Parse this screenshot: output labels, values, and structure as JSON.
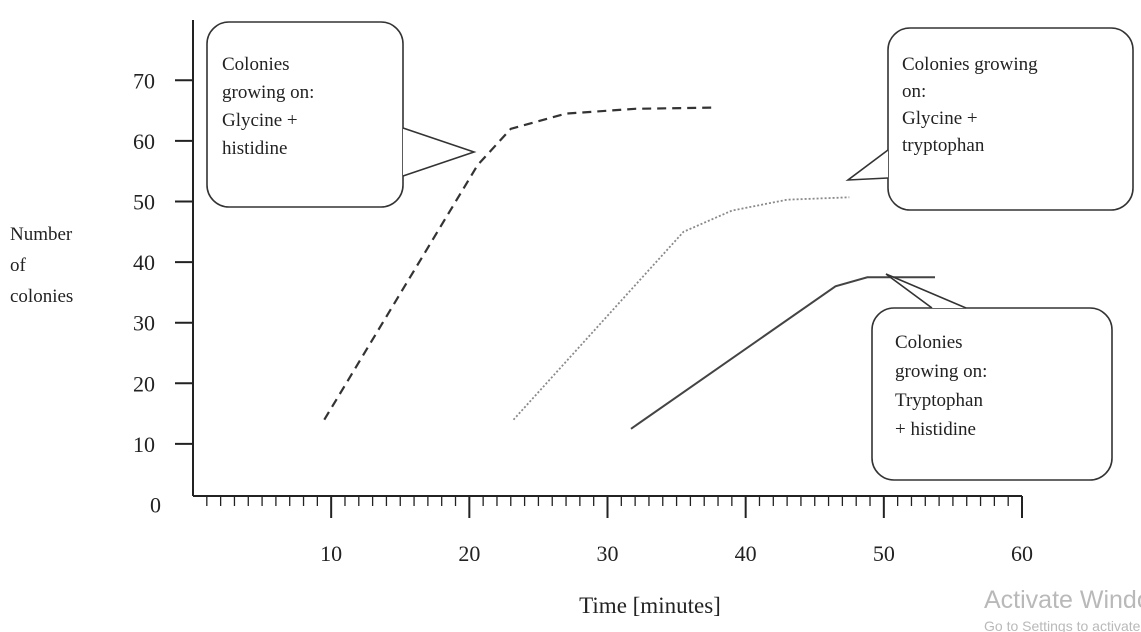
{
  "chart_data": {
    "type": "line",
    "xlabel": "Time [minutes]",
    "ylabel_lines": [
      "Number",
      "of",
      "colonies"
    ],
    "x_ticks": [
      10,
      20,
      30,
      40,
      50,
      60
    ],
    "y_ticks": [
      0,
      10,
      20,
      30,
      40,
      50,
      60,
      70
    ],
    "xlim": [
      0,
      60
    ],
    "ylim": [
      0,
      70
    ],
    "grid": false,
    "legend": "none",
    "series": [
      {
        "style": "dashed",
        "color": "#333333",
        "points": [
          [
            9.5,
            14
          ],
          [
            20.6,
            56
          ],
          [
            23,
            62
          ],
          [
            27,
            64.5
          ],
          [
            32,
            65.3
          ],
          [
            37.7,
            65.5
          ]
        ],
        "callout": [
          "Colonies",
          "growing on:",
          "Glycine +",
          "histidine"
        ]
      },
      {
        "style": "dotted",
        "color": "#8a8a8a",
        "points": [
          [
            23.2,
            14
          ],
          [
            35.5,
            45
          ],
          [
            39,
            48.5
          ],
          [
            43,
            50.3
          ],
          [
            47.5,
            50.7
          ]
        ],
        "callout": [
          "Colonies growing",
          "on:",
          "Glycine +",
          "tryptophan"
        ]
      },
      {
        "style": "solid",
        "color": "#444444",
        "points": [
          [
            31.7,
            12.5
          ],
          [
            46.5,
            36
          ],
          [
            48.8,
            37.5
          ],
          [
            53.7,
            37.5
          ]
        ],
        "callout": [
          "Colonies",
          "growing on:",
          "Tryptophan",
          "+ histidine"
        ]
      }
    ]
  },
  "watermark": {
    "title": "Activate Windows",
    "subtitle": "Go to Settings to activate Windows."
  }
}
